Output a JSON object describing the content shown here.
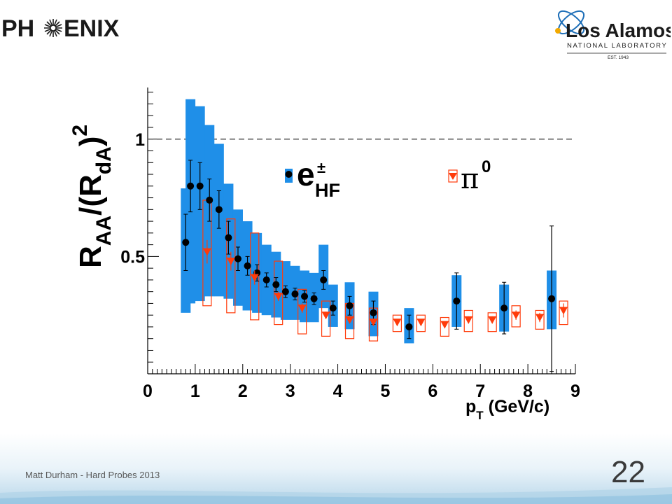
{
  "header": {
    "left_logo_text": "PHENIX",
    "right_logo": {
      "name": "Los Alamos",
      "subtitle": "NATIONAL LABORATORY",
      "est": "EST. 1943"
    }
  },
  "footer": {
    "text": "Matt Durham - Hard Probes 2013",
    "page_number": "22"
  },
  "colors": {
    "ehf": "#1f8fe8",
    "pi0": "#ff3b0a",
    "points": "#000000",
    "dashed": "#555555"
  },
  "chart_data": {
    "type": "scatter",
    "ylabel": "R_AA/(R_dA)^2",
    "xlabel": "pT (GeV/c)",
    "xlim": [
      0,
      9
    ],
    "ylim": [
      0.0,
      1.22
    ],
    "xticks": [
      "0",
      "1",
      "2",
      "3",
      "4",
      "5",
      "6",
      "7",
      "8",
      "9"
    ],
    "yticks": [
      {
        "value": 0.5,
        "label": "0.5"
      },
      {
        "value": 1.0,
        "label": "1"
      }
    ],
    "reference_line": 1.0,
    "legend": {
      "ehf": {
        "base": "e",
        "sup": "±",
        "sub": "HF"
      },
      "pi0": {
        "base": "π",
        "sup": "0"
      }
    },
    "series": [
      {
        "name": "ehf",
        "points": [
          {
            "x": 0.8,
            "y": 0.56,
            "err": 0.12,
            "syst_lo": 0.26,
            "syst_hi": 0.79
          },
          {
            "x": 0.9,
            "y": 0.8,
            "err": 0.11,
            "syst_lo": 0.3,
            "syst_hi": 1.17
          },
          {
            "x": 1.1,
            "y": 0.8,
            "err": 0.1,
            "syst_lo": 0.31,
            "syst_hi": 1.14
          },
          {
            "x": 1.3,
            "y": 0.74,
            "err": 0.09,
            "syst_lo": 0.33,
            "syst_hi": 1.06
          },
          {
            "x": 1.5,
            "y": 0.7,
            "err": 0.08,
            "syst_lo": 0.33,
            "syst_hi": 0.98
          },
          {
            "x": 1.7,
            "y": 0.58,
            "err": 0.07,
            "syst_lo": 0.32,
            "syst_hi": 0.81
          },
          {
            "x": 1.9,
            "y": 0.49,
            "err": 0.05,
            "syst_lo": 0.29,
            "syst_hi": 0.7
          },
          {
            "x": 2.1,
            "y": 0.46,
            "err": 0.04,
            "syst_lo": 0.27,
            "syst_hi": 0.65
          },
          {
            "x": 2.3,
            "y": 0.43,
            "err": 0.035,
            "syst_lo": 0.26,
            "syst_hi": 0.6
          },
          {
            "x": 2.5,
            "y": 0.4,
            "err": 0.03,
            "syst_lo": 0.25,
            "syst_hi": 0.55
          },
          {
            "x": 2.7,
            "y": 0.38,
            "err": 0.03,
            "syst_lo": 0.24,
            "syst_hi": 0.52
          },
          {
            "x": 2.9,
            "y": 0.35,
            "err": 0.025,
            "syst_lo": 0.23,
            "syst_hi": 0.48
          },
          {
            "x": 3.1,
            "y": 0.34,
            "err": 0.025,
            "syst_lo": 0.23,
            "syst_hi": 0.46
          },
          {
            "x": 3.3,
            "y": 0.33,
            "err": 0.025,
            "syst_lo": 0.22,
            "syst_hi": 0.44
          },
          {
            "x": 3.5,
            "y": 0.32,
            "err": 0.025,
            "syst_lo": 0.22,
            "syst_hi": 0.43
          },
          {
            "x": 3.7,
            "y": 0.4,
            "err": 0.04,
            "syst_lo": 0.28,
            "syst_hi": 0.55
          },
          {
            "x": 3.9,
            "y": 0.28,
            "err": 0.03,
            "syst_lo": 0.2,
            "syst_hi": 0.38
          },
          {
            "x": 4.25,
            "y": 0.29,
            "err": 0.04,
            "syst_lo": 0.19,
            "syst_hi": 0.39
          },
          {
            "x": 4.75,
            "y": 0.26,
            "err": 0.05,
            "syst_lo": 0.16,
            "syst_hi": 0.35
          },
          {
            "x": 5.5,
            "y": 0.2,
            "err": 0.05,
            "syst_lo": 0.13,
            "syst_hi": 0.28
          },
          {
            "x": 6.5,
            "y": 0.31,
            "err": 0.12,
            "syst_lo": 0.2,
            "syst_hi": 0.42
          },
          {
            "x": 7.5,
            "y": 0.28,
            "err": 0.11,
            "syst_lo": 0.18,
            "syst_hi": 0.38
          },
          {
            "x": 8.5,
            "y": 0.32,
            "err": 0.31,
            "syst_lo": 0.19,
            "syst_hi": 0.44
          }
        ]
      },
      {
        "name": "pi0",
        "points": [
          {
            "x": 1.25,
            "y": 0.52,
            "err": 0.05,
            "syst_lo": 0.29,
            "syst_hi": 0.74
          },
          {
            "x": 1.75,
            "y": 0.48,
            "err": 0.04,
            "syst_lo": 0.26,
            "syst_hi": 0.66
          },
          {
            "x": 2.25,
            "y": 0.41,
            "err": 0.03,
            "syst_lo": 0.23,
            "syst_hi": 0.6
          },
          {
            "x": 2.75,
            "y": 0.33,
            "err": 0.02,
            "syst_lo": 0.21,
            "syst_hi": 0.48
          },
          {
            "x": 3.25,
            "y": 0.28,
            "err": 0.02,
            "syst_lo": 0.17,
            "syst_hi": 0.36
          },
          {
            "x": 3.75,
            "y": 0.25,
            "err": 0.015,
            "syst_lo": 0.16,
            "syst_hi": 0.31
          },
          {
            "x": 4.25,
            "y": 0.23,
            "err": 0.015,
            "syst_lo": 0.15,
            "syst_hi": 0.3
          },
          {
            "x": 4.75,
            "y": 0.22,
            "err": 0.015,
            "syst_lo": 0.14,
            "syst_hi": 0.28
          },
          {
            "x": 5.25,
            "y": 0.22,
            "err": 0.01,
            "syst_lo": 0.18,
            "syst_hi": 0.25
          },
          {
            "x": 5.75,
            "y": 0.22,
            "err": 0.01,
            "syst_lo": 0.18,
            "syst_hi": 0.25
          },
          {
            "x": 6.25,
            "y": 0.21,
            "err": 0.01,
            "syst_lo": 0.16,
            "syst_hi": 0.24
          },
          {
            "x": 6.75,
            "y": 0.23,
            "err": 0.015,
            "syst_lo": 0.18,
            "syst_hi": 0.27
          },
          {
            "x": 7.25,
            "y": 0.23,
            "err": 0.015,
            "syst_lo": 0.18,
            "syst_hi": 0.26
          },
          {
            "x": 7.75,
            "y": 0.25,
            "err": 0.02,
            "syst_lo": 0.2,
            "syst_hi": 0.29
          },
          {
            "x": 8.25,
            "y": 0.24,
            "err": 0.02,
            "syst_lo": 0.19,
            "syst_hi": 0.27
          },
          {
            "x": 8.75,
            "y": 0.27,
            "err": 0.03,
            "syst_lo": 0.21,
            "syst_hi": 0.31
          }
        ]
      }
    ]
  }
}
